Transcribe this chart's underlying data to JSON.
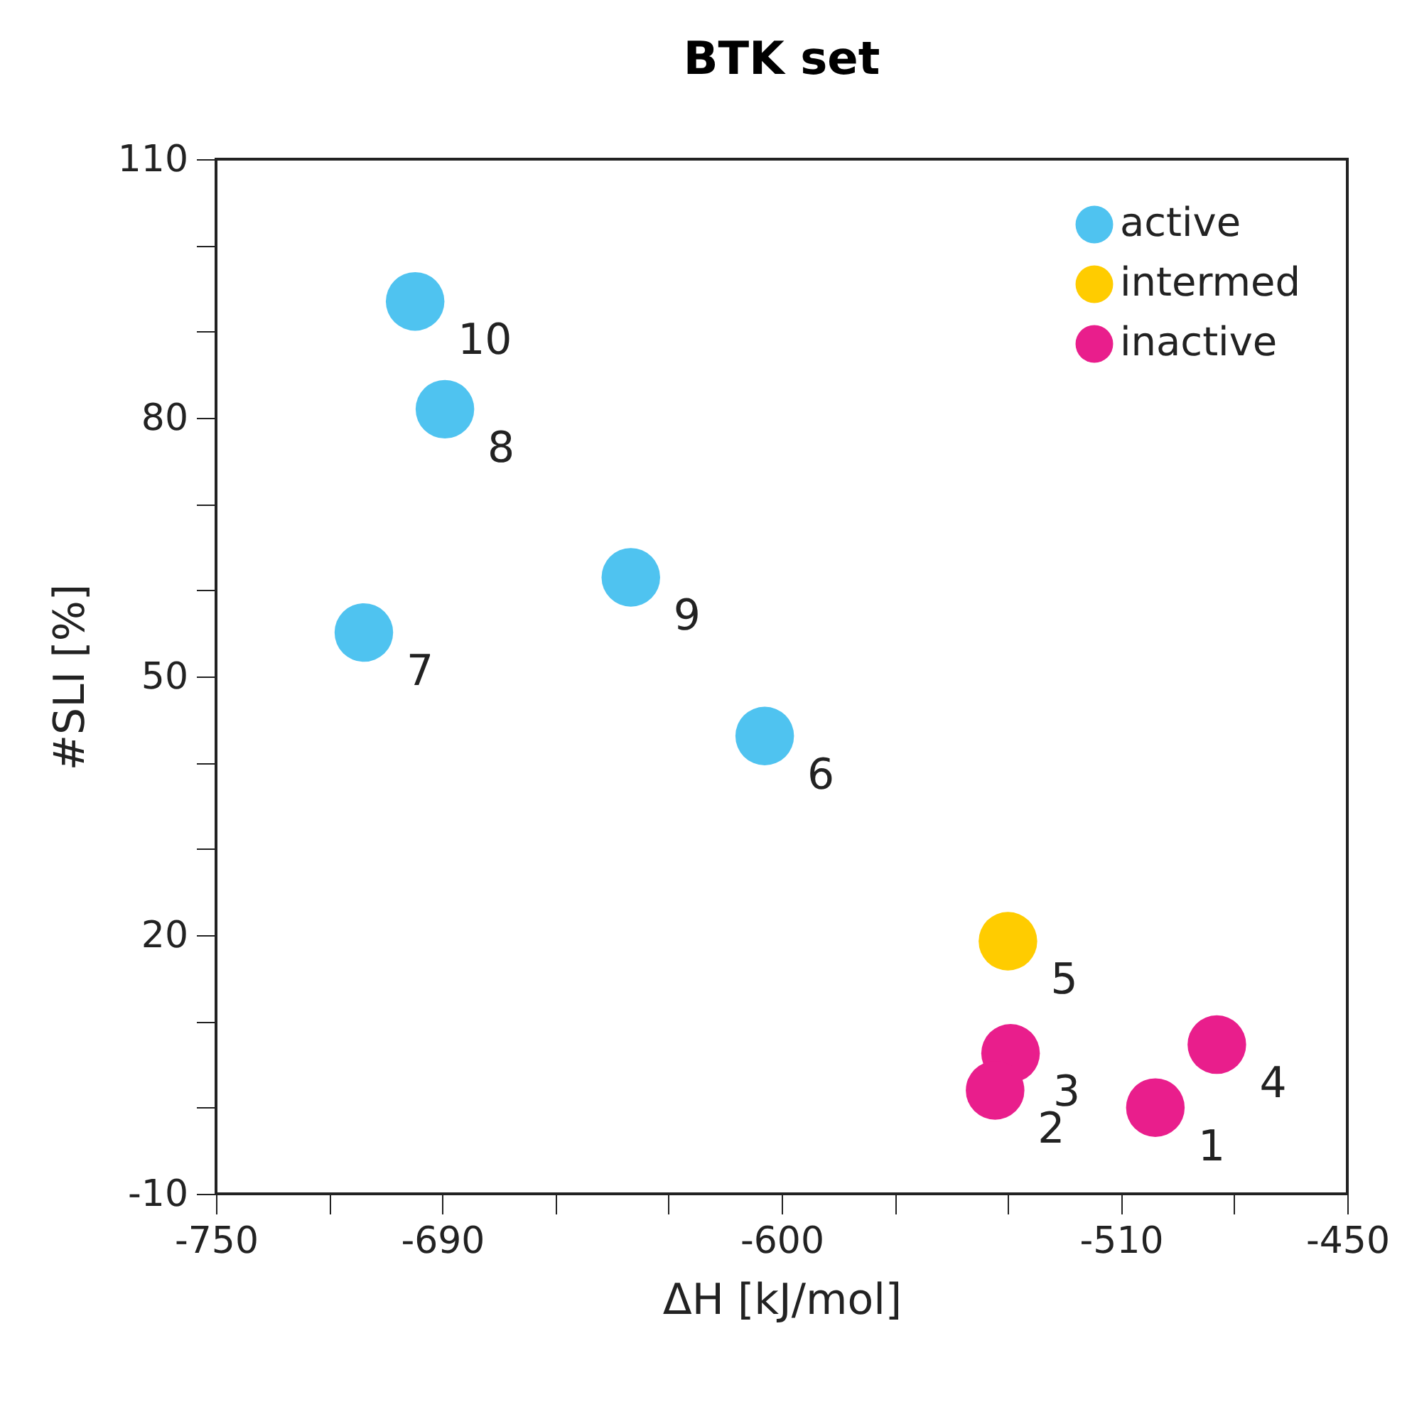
{
  "chart_data": {
    "type": "scatter",
    "title": "BTK set",
    "xlabel": "ΔH [kJ/mol]",
    "ylabel": "#SLI [%]",
    "xlim": [
      -750,
      -450
    ],
    "xticks": [
      -750,
      {
        "value": -720,
        "label": null
      },
      -690,
      {
        "value": -660,
        "label": null
      },
      {
        "value": -630,
        "label": null
      },
      -600,
      {
        "value": -570,
        "label": null
      },
      {
        "value": -540,
        "label": null
      },
      -510,
      {
        "value": -480,
        "label": null
      },
      -450
    ],
    "ylim": [
      -10,
      110
    ],
    "yticks": [
      -10,
      {
        "value": 0,
        "label": null
      },
      {
        "value": 10,
        "label": null
      },
      20,
      {
        "value": 30,
        "label": null
      },
      {
        "value": 40,
        "label": null
      },
      50,
      {
        "value": 60,
        "label": null
      },
      {
        "value": 70,
        "label": null
      },
      80,
      {
        "value": 90,
        "label": null
      },
      {
        "value": 100,
        "label": null
      },
      110
    ],
    "grid": false,
    "legend": "top right",
    "marker": "circle",
    "series": [
      {
        "name": "active",
        "color": "#4fc3f0",
        "x": [
          -697.2,
          -689.3,
          -640,
          -710.8,
          -604.5
        ],
        "values": [
          93.5,
          81,
          61.5,
          55.1,
          43.1
        ]
      },
      {
        "name": "intermed",
        "color": "#ffcc00",
        "x": [
          -540
        ],
        "values": [
          19.3
        ]
      },
      {
        "name": "inactive",
        "color": "#e91e8c",
        "x": [
          -539.3,
          -543.4,
          -500.9,
          -484.6
        ],
        "values": [
          6.3,
          2,
          0,
          7.3
        ]
      }
    ],
    "annotations": [
      {
        "text": "10",
        "x": -697.2,
        "y": 93.5
      },
      {
        "text": "8",
        "x": -689.3,
        "y": 81
      },
      {
        "text": "9",
        "x": -640,
        "y": 61.5
      },
      {
        "text": "7",
        "x": -710.8,
        "y": 55.1
      },
      {
        "text": "6",
        "x": -604.5,
        "y": 43.1
      },
      {
        "text": "5",
        "x": -540,
        "y": 19.3
      },
      {
        "text": "3",
        "x": -539.3,
        "y": 6.3
      },
      {
        "text": "2",
        "x": -543.4,
        "y": 2
      },
      {
        "text": "1",
        "x": -500.9,
        "y": 0
      },
      {
        "text": "4",
        "x": -484.6,
        "y": 7.3
      }
    ]
  }
}
